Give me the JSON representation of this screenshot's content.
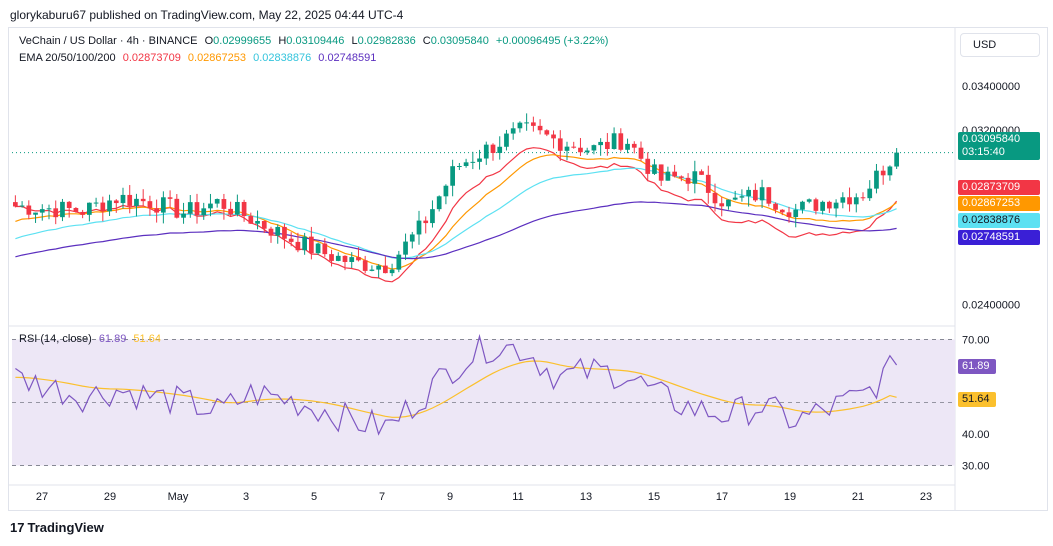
{
  "header": {
    "publisher_line": "glorykaburu67 published on TradingView.com, May 22, 2025 04:44 UTC-4"
  },
  "legend": {
    "symbol": "VeChain / US Dollar · 4h · BINANCE",
    "open_label": "O",
    "open": "0.02999655",
    "high_label": "H",
    "high": "0.03109446",
    "low_label": "L",
    "low": "0.02982836",
    "close_label": "C",
    "close": "0.03095840",
    "change": "+0.00096495 (+3.22%)",
    "ema_label": "EMA 20/50/100/200",
    "ema_values": [
      "0.02873709",
      "0.02867253",
      "0.02838876",
      "0.02748591"
    ],
    "rsi_label": "RSI (14, close)",
    "rsi_value": "61.89",
    "rsi_ma_value": "51.64"
  },
  "currency": "USD",
  "price_scale": {
    "labels": [
      "0.03400000",
      "0.03200000",
      "0.02400000"
    ],
    "current_price": "0.03095840",
    "countdown": "03:15:40",
    "ema_badges": [
      "0.02873709",
      "0.02867253",
      "0.02838876",
      "0.02748591"
    ]
  },
  "rsi_scale": {
    "labels": [
      "70.00",
      "40.00",
      "30.00"
    ],
    "current": "61.89",
    "ma_current": "51.64"
  },
  "time_axis": [
    "27",
    "29",
    "May",
    "3",
    "5",
    "7",
    "9",
    "11",
    "13",
    "15",
    "17",
    "19",
    "21",
    "23"
  ],
  "brand": {
    "logo_text": "17",
    "name": "TradingView"
  },
  "colors": {
    "up": "#089981",
    "down": "#f23645",
    "ema20": "#f23645",
    "ema50": "#ff9800",
    "ema100": "#5ce1f2",
    "ema200": "#5b2fbf",
    "rsi": "#7e57c2",
    "rsi_ma": "#fbc02d",
    "rsi_band": "#ede7f6"
  },
  "chart_data": {
    "type": "candlestick",
    "symbol": "VeChain / US Dollar",
    "interval": "4h",
    "exchange": "BINANCE",
    "price_range": [
      0.0232,
      0.0352
    ],
    "x_ticks": [
      "27",
      "29",
      "May",
      "3",
      "5",
      "7",
      "9",
      "11",
      "13",
      "15",
      "17",
      "19",
      "21",
      "23"
    ],
    "close_trajectory": {
      "x": [
        "Apr 26",
        "Apr 27",
        "Apr 28",
        "Apr 29",
        "Apr 30",
        "May 1",
        "May 2",
        "May 3",
        "May 4",
        "May 5",
        "May 6",
        "May 7",
        "May 8",
        "May 9",
        "May 10",
        "May 11",
        "May 12",
        "May 13",
        "May 14",
        "May 15",
        "May 16",
        "May 17",
        "May 18",
        "May 19",
        "May 20",
        "May 21",
        "May 22"
      ],
      "close": [
        0.0285,
        0.0284,
        0.0283,
        0.0289,
        0.0287,
        0.0282,
        0.0287,
        0.0279,
        0.0271,
        0.0264,
        0.0259,
        0.0258,
        0.0276,
        0.0303,
        0.0312,
        0.032,
        0.0315,
        0.0311,
        0.0316,
        0.0297,
        0.0299,
        0.0286,
        0.0291,
        0.0283,
        0.0288,
        0.0291,
        0.031
      ]
    },
    "ema": [
      {
        "name": "EMA 20",
        "last": 0.02873709
      },
      {
        "name": "EMA 50",
        "last": 0.02867253
      },
      {
        "name": "EMA 100",
        "last": 0.02838876
      },
      {
        "name": "EMA 200",
        "last": 0.02748591
      }
    ],
    "rsi": {
      "period": 14,
      "levels": [
        70,
        50,
        30
      ],
      "range": [
        27,
        73
      ],
      "values": [
        58,
        55,
        52,
        54,
        52,
        50,
        47,
        53,
        51,
        48,
        44,
        42,
        52,
        62,
        68,
        67,
        58,
        60,
        59,
        52,
        48,
        46,
        49,
        44,
        48,
        52,
        61.89
      ],
      "ma_last": 51.64
    }
  }
}
